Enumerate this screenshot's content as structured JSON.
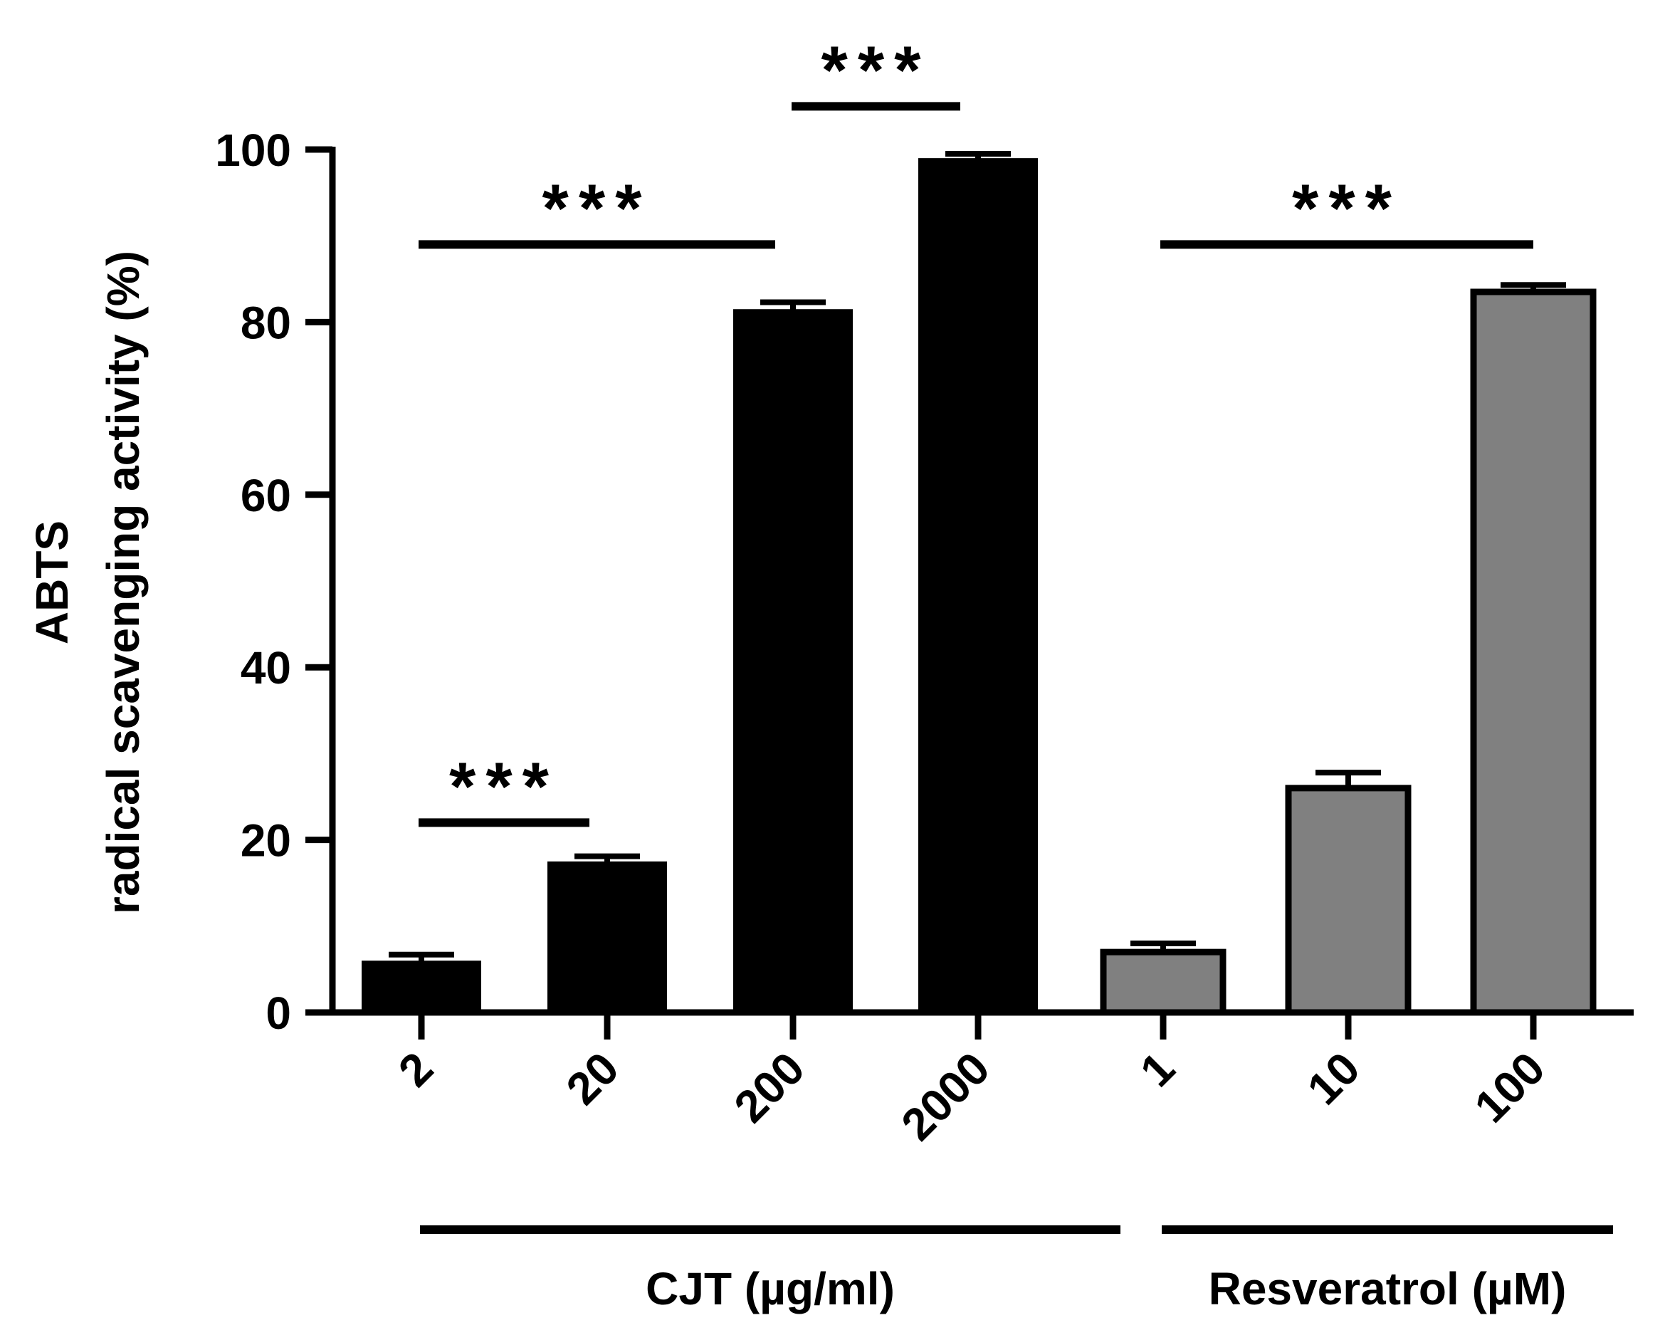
{
  "chart_data": {
    "type": "bar",
    "ylabel_line1": "ABTS",
    "ylabel_line2": "radical scavenging activity (%)",
    "ylim": [
      0,
      100
    ],
    "yticks": [
      0,
      20,
      40,
      60,
      80,
      100
    ],
    "categories": [
      "2",
      "20",
      "200",
      "2000",
      "1",
      "10",
      "100"
    ],
    "values": [
      6,
      17.5,
      81.5,
      99,
      7,
      26,
      83.5
    ],
    "errors": [
      0.7,
      0.6,
      0.8,
      0.5,
      1.0,
      1.8,
      0.8
    ],
    "bar_groups": [
      "CJT",
      "CJT",
      "CJT",
      "CJT",
      "Resveratrol",
      "Resveratrol",
      "Resveratrol"
    ],
    "colors": {
      "CJT": "#000000",
      "Resveratrol": "#808080",
      "outline": "#000000"
    },
    "groups": [
      {
        "name": "CJT",
        "label": "CJT (µg/ml)",
        "first_index": 0,
        "last_index": 3
      },
      {
        "name": "Resveratrol",
        "label": "Resveratrol (µM)",
        "first_index": 4,
        "last_index": 6
      }
    ],
    "significance": [
      {
        "label": "***",
        "from_index": 0,
        "to_index": 1,
        "level": 22
      },
      {
        "label": "***",
        "from_index": 0,
        "to_index": 2,
        "level": 89
      },
      {
        "label": "***",
        "from_index": 2,
        "to_index": 3,
        "level": 105
      },
      {
        "label": "***",
        "from_index": 4,
        "to_index": 6,
        "level": 89
      }
    ]
  }
}
